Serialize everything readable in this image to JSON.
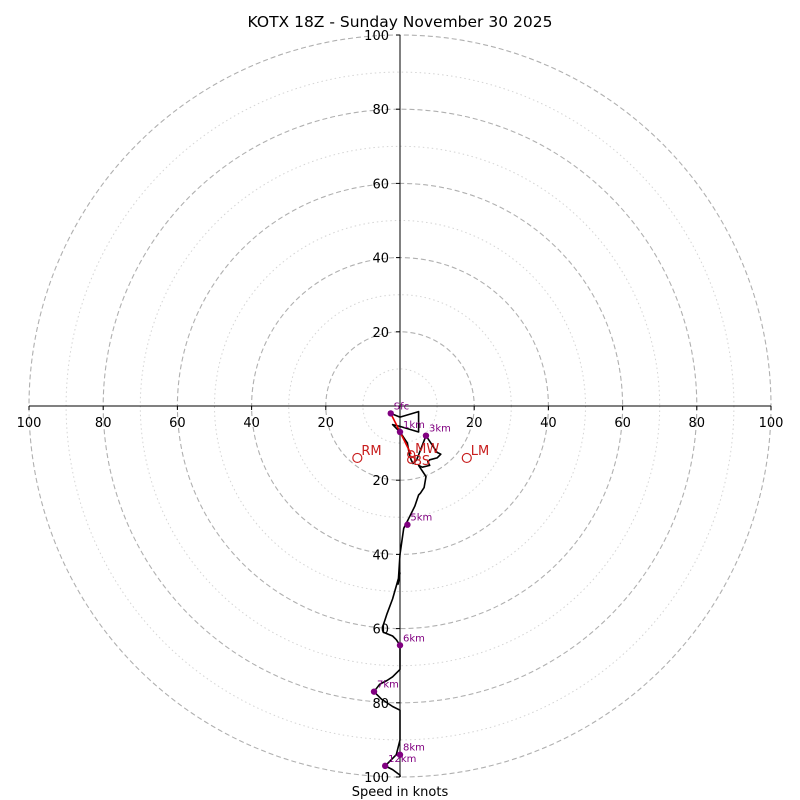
{
  "chart_data": {
    "type": "hodograph",
    "title": "KOTX 18Z - Sunday November 30 2025",
    "xlabel": "Speed in knots",
    "range_knots": [
      -100,
      100
    ],
    "ring_major_step": 20,
    "ring_minor_step": 10,
    "x_tick_labels": [
      "100",
      "80",
      "60",
      "40",
      "20",
      "20",
      "40",
      "60",
      "80",
      "100"
    ],
    "y_tick_labels_up": [
      "100",
      "80",
      "60",
      "40",
      "20"
    ],
    "y_tick_labels_down": [
      "20",
      "40",
      "60",
      "80",
      "100"
    ],
    "profile_u": [
      -2.5,
      0,
      5,
      5,
      0,
      -2,
      0,
      2,
      2.5,
      3,
      3.5,
      4.5,
      7,
      10,
      11,
      10,
      8,
      7.5,
      8,
      6,
      5,
      7,
      6.5,
      5.5,
      5,
      4,
      2.5,
      1,
      0,
      -0.5,
      0,
      -2,
      -3.5,
      -4,
      -4.5,
      -4.5,
      -4.5,
      -4.5,
      -2,
      -1,
      0,
      0,
      -2,
      -3.5,
      -5.5,
      -7,
      -5,
      -2,
      0,
      0,
      0,
      0,
      0,
      -1,
      -4,
      -2,
      0,
      0
    ],
    "profile_v": [
      -2,
      -3,
      -1.5,
      -7,
      -5.5,
      -5,
      -7,
      -10,
      -13,
      -14.5,
      -15.5,
      -14.5,
      -8,
      -12.5,
      -13,
      -14,
      -14.5,
      -15,
      -16,
      -16.5,
      -16,
      -19,
      -22,
      -23.5,
      -24,
      -27,
      -30,
      -33,
      -40,
      -48,
      -45,
      -52,
      -56,
      -57.5,
      -59,
      -60,
      -60.5,
      -61,
      -62,
      -63,
      -64.5,
      -71,
      -73,
      -74,
      -75,
      -77,
      -79,
      -81,
      -82,
      -84,
      -86,
      -88,
      -90,
      -94,
      -97,
      -98,
      -99.5,
      -100
    ],
    "height_markers": [
      {
        "label": "Sfc",
        "u": -2.5,
        "v": -2
      },
      {
        "label": "1km",
        "u": 0,
        "v": -7
      },
      {
        "label": "3km",
        "u": 7,
        "v": -8
      },
      {
        "label": "5km",
        "u": 2,
        "v": -32
      },
      {
        "label": "6km",
        "u": 0,
        "v": -64.5
      },
      {
        "label": "7km",
        "u": -7,
        "v": -77
      },
      {
        "label": "8km",
        "u": 0,
        "v": -94
      },
      {
        "label": "12km",
        "u": -4,
        "v": -97
      }
    ],
    "storm_motion": [
      {
        "label": "RM",
        "u": -11.5,
        "v": -14
      },
      {
        "label": "LM",
        "u": 18,
        "v": -14
      },
      {
        "label": "MW",
        "u": 3,
        "v": -13
      },
      {
        "label": "BS",
        "u": 3,
        "v": -14.5
      }
    ],
    "shear_vector": {
      "u0": -2.5,
      "v0": -2,
      "u1": 3,
      "v1": -13
    },
    "colors": {
      "profile": "#000000",
      "marker": "#800080",
      "storm_motion": "#c81e1e",
      "shear": "#e60000",
      "grid": "#b0b0b0",
      "grid_minor": "#d4d4d4"
    }
  }
}
